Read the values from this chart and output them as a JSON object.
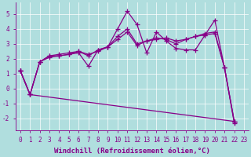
{
  "xlabel": "Windchill (Refroidissement éolien,°C)",
  "background_color": "#b0dede",
  "line_color": "#880088",
  "xlim": [
    -0.5,
    23.5
  ],
  "ylim": [
    -2.8,
    5.8
  ],
  "xticks": [
    0,
    1,
    2,
    3,
    4,
    5,
    6,
    7,
    8,
    9,
    10,
    11,
    12,
    13,
    14,
    15,
    16,
    17,
    18,
    19,
    20,
    21,
    22,
    23
  ],
  "yticks": [
    -2,
    -1,
    0,
    1,
    2,
    3,
    4,
    5
  ],
  "series1_x": [
    0,
    1,
    2,
    3,
    4,
    5,
    6,
    7,
    8,
    9,
    10,
    11,
    12,
    13,
    14,
    15,
    16,
    17,
    18,
    19,
    20,
    21,
    22
  ],
  "series1_y": [
    1.2,
    -0.4,
    1.8,
    2.2,
    2.2,
    2.3,
    2.4,
    1.5,
    2.6,
    2.8,
    4.0,
    5.2,
    4.3,
    2.4,
    3.8,
    3.2,
    2.7,
    2.6,
    2.6,
    3.6,
    4.6,
    1.4,
    -2.3
  ],
  "series2_x": [
    0,
    1,
    2,
    3,
    4,
    5,
    6,
    7,
    8,
    9,
    10,
    11,
    12,
    13,
    14,
    15,
    16,
    17,
    18,
    19,
    20,
    21,
    22
  ],
  "series2_y": [
    1.2,
    -0.4,
    1.8,
    2.1,
    2.2,
    2.3,
    2.5,
    2.3,
    2.5,
    2.8,
    3.5,
    4.0,
    3.0,
    3.2,
    3.3,
    3.4,
    3.2,
    3.3,
    3.5,
    3.6,
    3.7,
    1.4,
    -2.2
  ],
  "series3_x": [
    0,
    1,
    2,
    3,
    4,
    5,
    6,
    7,
    8,
    9,
    10,
    11,
    12,
    13,
    14,
    15,
    16,
    17,
    18,
    19,
    20,
    21,
    22
  ],
  "series3_y": [
    1.2,
    -0.4,
    1.8,
    2.2,
    2.3,
    2.4,
    2.5,
    2.2,
    2.6,
    2.8,
    3.3,
    3.8,
    2.9,
    3.2,
    3.4,
    3.3,
    3.0,
    3.3,
    3.5,
    3.7,
    3.8,
    1.4,
    -2.2
  ],
  "series4_x": [
    0,
    1,
    22
  ],
  "series4_y": [
    1.2,
    -0.4,
    -2.2
  ],
  "marker": "+",
  "markersize": 4,
  "linewidth": 0.9,
  "tick_fontsize": 5.5,
  "label_fontsize": 6.5
}
